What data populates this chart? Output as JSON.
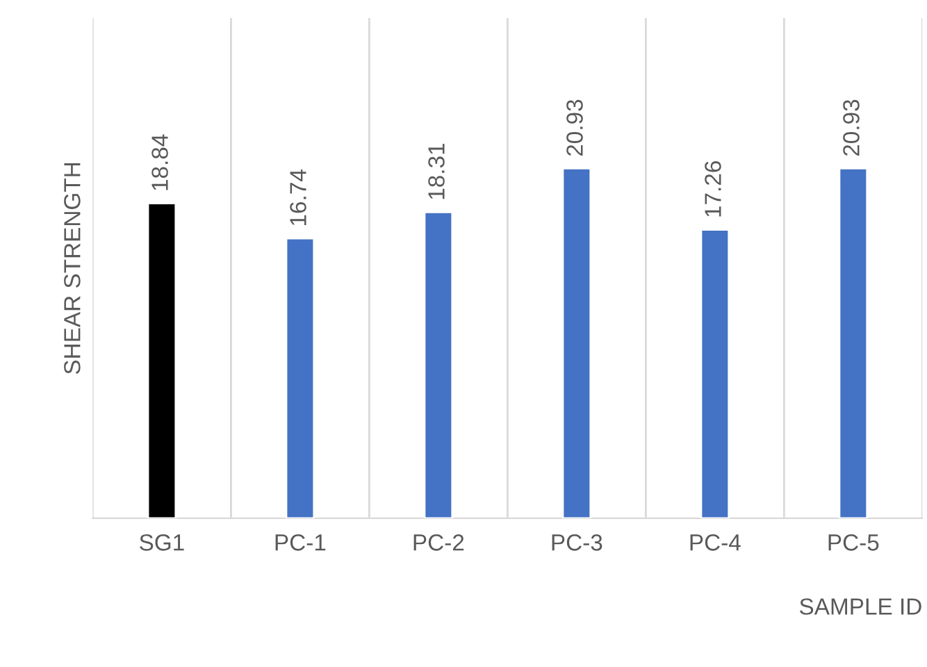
{
  "chart_data": {
    "type": "bar",
    "xlabel": "SAMPLE ID",
    "ylabel": "SHEAR STRENGTH",
    "categories": [
      "SG1",
      "PC-1",
      "PC-2",
      "PC-3",
      "PC-4",
      "PC-5"
    ],
    "values": [
      18.84,
      16.74,
      18.31,
      20.93,
      17.26,
      20.93
    ],
    "colors": [
      "#000000",
      "#4472c4",
      "#4472c4",
      "#4472c4",
      "#4472c4",
      "#4472c4"
    ],
    "data_labels": true,
    "grid": "x",
    "legend": false
  }
}
